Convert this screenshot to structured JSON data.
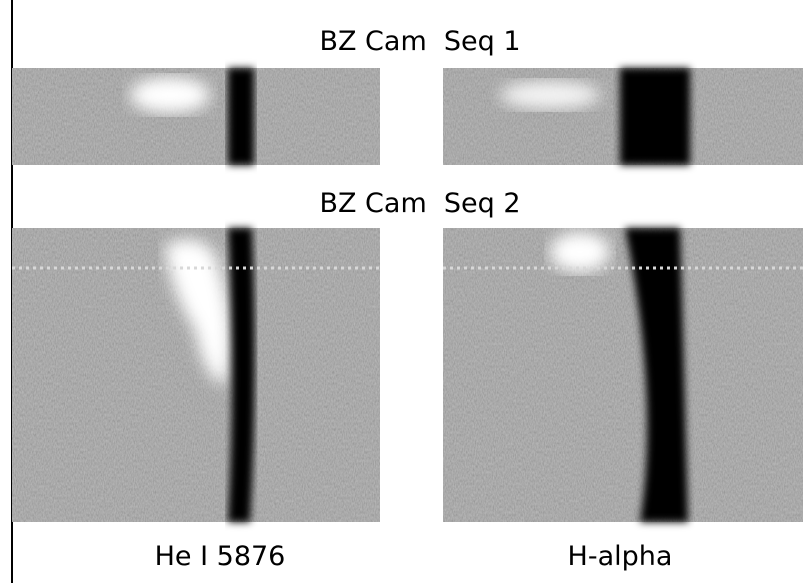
{
  "panels": {
    "seq1_title": "BZ Cam  Seq 1",
    "seq2_title": "BZ Cam  Seq 2"
  },
  "columns": {
    "left_label": "He I 5876",
    "right_label": "H-alpha"
  }
}
